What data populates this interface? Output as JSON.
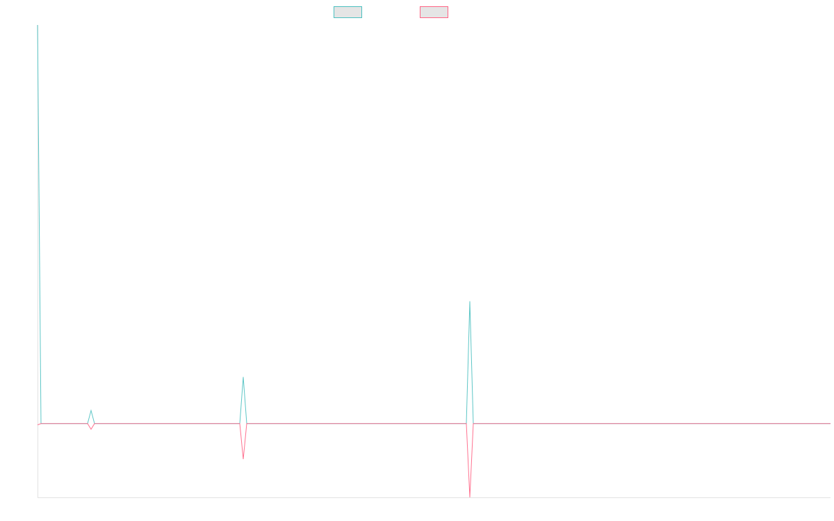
{
  "chart_data": {
    "type": "line",
    "title": "",
    "xlabel": "",
    "ylabel": "",
    "xlim": [
      0,
      228.2
    ],
    "ylim": [
      -18.5,
      100
    ],
    "grid": false,
    "legend_placement": "top-center",
    "series": [
      {
        "name": "",
        "color": "#4bc0c0",
        "points": [
          [
            0,
            100
          ],
          [
            1,
            0
          ],
          [
            14.4,
            0
          ],
          [
            15.4,
            3.3
          ],
          [
            16.4,
            0
          ],
          [
            58.2,
            0
          ],
          [
            59.2,
            11.7
          ],
          [
            60.2,
            0
          ],
          [
            123.4,
            0
          ],
          [
            124.4,
            30.7
          ],
          [
            125.4,
            0
          ],
          [
            228.2,
            0
          ]
        ]
      },
      {
        "name": "",
        "color": "#ff6384",
        "points": [
          [
            0,
            -0.3
          ],
          [
            1,
            0
          ],
          [
            14.4,
            0
          ],
          [
            15.4,
            -1.4
          ],
          [
            16.4,
            0
          ],
          [
            58.2,
            0
          ],
          [
            59.2,
            -8.9
          ],
          [
            60.2,
            0
          ],
          [
            123.4,
            0
          ],
          [
            124.4,
            -18.5
          ],
          [
            125.4,
            0
          ],
          [
            228.2,
            0
          ]
        ]
      }
    ]
  }
}
